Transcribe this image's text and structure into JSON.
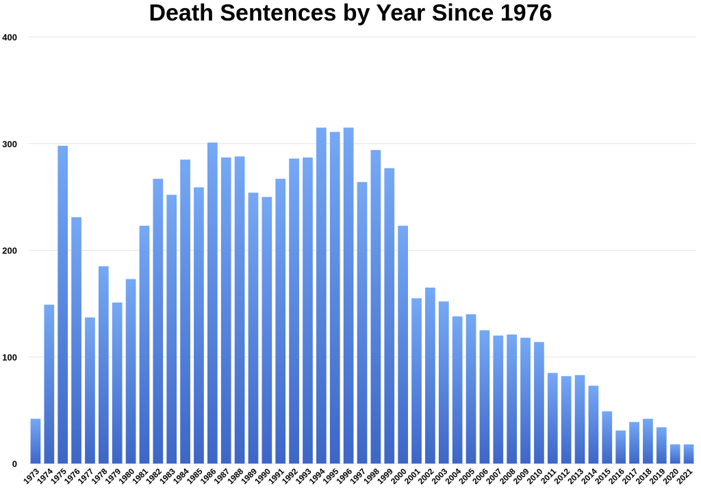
{
  "chart_data": {
    "type": "bar",
    "title": "Death Sentences by Year Since 1976",
    "xlabel": "",
    "ylabel": "",
    "ylim": [
      0,
      400
    ],
    "yticks": [
      "0",
      "100",
      "200",
      "300",
      "400"
    ],
    "grid": true,
    "bar_color_top": "#75a8f5",
    "bar_color_bottom": "#3d66c7",
    "gridline_color": "#e3e3e3",
    "categories": [
      "1973",
      "1974",
      "1975",
      "1976",
      "1977",
      "1978",
      "1979",
      "1980",
      "1981",
      "1982",
      "1983",
      "1984",
      "1985",
      "1986",
      "1987",
      "1988",
      "1989",
      "1990",
      "1991",
      "1992",
      "1993",
      "1994",
      "1995",
      "1996",
      "1997",
      "1998",
      "1999",
      "2000",
      "2001",
      "2002",
      "2003",
      "2004",
      "2005",
      "2006",
      "2007",
      "2008",
      "2009",
      "2010",
      "2011",
      "2012",
      "2013",
      "2014",
      "2015",
      "2016",
      "2017",
      "2018",
      "2019",
      "2020",
      "2021"
    ],
    "values": [
      42,
      149,
      298,
      231,
      137,
      185,
      151,
      173,
      223,
      267,
      252,
      285,
      259,
      301,
      287,
      288,
      254,
      250,
      267,
      286,
      287,
      315,
      311,
      315,
      264,
      294,
      277,
      223,
      155,
      165,
      152,
      138,
      140,
      125,
      120,
      121,
      118,
      114,
      85,
      82,
      83,
      73,
      49,
      31,
      39,
      42,
      34,
      18,
      18
    ]
  }
}
